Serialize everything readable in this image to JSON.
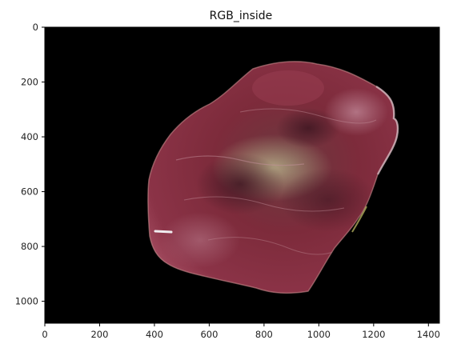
{
  "figure": {
    "title": "RGB_inside",
    "background_color": "#000000",
    "x_axis": {
      "range": [
        0,
        1440
      ],
      "ticks": [
        0,
        200,
        400,
        600,
        800,
        1000,
        1200,
        1400
      ]
    },
    "y_axis": {
      "range": [
        0,
        1080
      ],
      "inverted": true,
      "ticks": [
        0,
        200,
        400,
        600,
        800,
        1000
      ]
    },
    "subject": "meat-tissue-image",
    "tissue_colors": {
      "base": "#7e2a3a",
      "dark": "#4a1a26",
      "light": "#b27f8f",
      "pale": "#b9b08a"
    }
  }
}
